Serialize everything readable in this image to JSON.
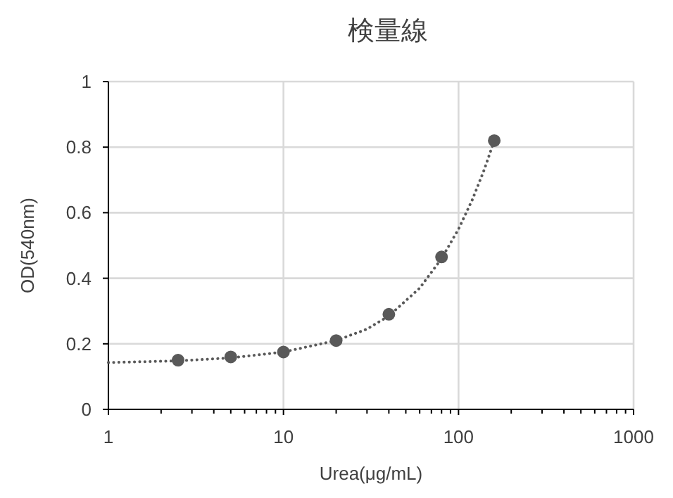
{
  "chart_data": {
    "type": "scatter",
    "title": "検量線",
    "xlabel": "Urea(μg/mL)",
    "ylabel": "OD(540nm)",
    "log": "x",
    "xlim": [
      1,
      1000
    ],
    "xticks": [
      1,
      10,
      100,
      1000
    ],
    "ylim": [
      0,
      1
    ],
    "yticks": [
      0,
      0.2,
      0.4,
      0.6,
      0.8,
      1
    ],
    "grid": true,
    "series": [
      {
        "marker": "circle",
        "color": "#595959",
        "x": [
          2.5,
          5,
          10,
          20,
          40,
          80,
          160
        ],
        "values": [
          0.15,
          0.16,
          0.175,
          0.21,
          0.29,
          0.465,
          0.82
        ]
      },
      {
        "type": "line",
        "color": "#595959",
        "line_style": "dotted",
        "marker": "none",
        "x": [
          1,
          2.5,
          5,
          10,
          20,
          30,
          40,
          60,
          80,
          100,
          120,
          140,
          160
        ],
        "values": [
          0.143,
          0.148,
          0.157,
          0.175,
          0.21,
          0.245,
          0.285,
          0.37,
          0.46,
          0.55,
          0.64,
          0.73,
          0.82
        ]
      }
    ]
  }
}
